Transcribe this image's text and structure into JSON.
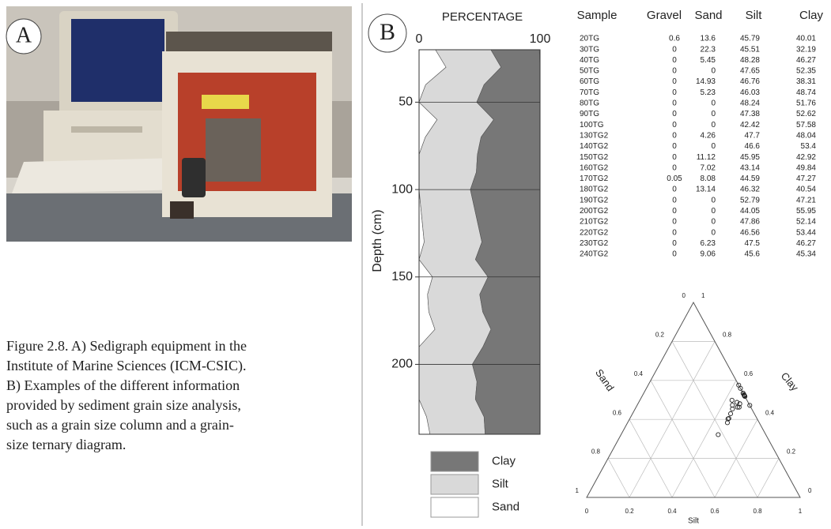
{
  "panels": {
    "a": "A",
    "b": "B"
  },
  "caption": [
    "Figure 2.8.  A) Sedigraph equipment in the",
    "Institute of Marine Sciences (ICM-CSIC).",
    "B) Examples of the different information",
    "provided by sediment grain size analysis,",
    "such as a grain size column and a  grain-",
    "size ternary diagram."
  ],
  "table": {
    "header": [
      "Sample",
      "Gravel",
      "Sand",
      "Silt",
      "Clay"
    ],
    "rows": [
      [
        "20TG",
        0.6,
        13.6,
        45.79,
        40.01
      ],
      [
        "30TG",
        0,
        22.3,
        45.51,
        32.19
      ],
      [
        "40TG",
        0,
        5.45,
        48.28,
        46.27
      ],
      [
        "50TG",
        0,
        0,
        47.65,
        52.35
      ],
      [
        "60TG",
        0,
        14.93,
        46.76,
        38.31
      ],
      [
        "70TG",
        0,
        5.23,
        46.03,
        48.74
      ],
      [
        "80TG",
        0,
        0,
        48.24,
        51.76
      ],
      [
        "90TG",
        0,
        0,
        47.38,
        52.62
      ],
      [
        "100TG",
        0,
        0,
        42.42,
        57.58
      ],
      [
        "130TG2",
        0,
        4.26,
        47.7,
        48.04
      ],
      [
        "140TG2",
        0,
        0,
        46.6,
        53.4
      ],
      [
        "150TG2",
        0,
        11.12,
        45.95,
        42.92
      ],
      [
        "160TG2",
        0,
        7.02,
        43.14,
        49.84
      ],
      [
        "170TG2",
        0.05,
        8.08,
        44.59,
        47.27
      ],
      [
        "180TG2",
        0,
        13.14,
        46.32,
        40.54
      ],
      [
        "190TG2",
        0,
        0,
        52.79,
        47.21
      ],
      [
        "200TG2",
        0,
        0,
        44.05,
        55.95
      ],
      [
        "210TG2",
        0,
        0,
        47.86,
        52.14
      ],
      [
        "220TG2",
        0,
        0,
        46.56,
        53.44
      ],
      [
        "230TG2",
        0,
        6.23,
        47.5,
        46.27
      ],
      [
        "240TG2",
        0,
        9.06,
        45.6,
        45.34
      ]
    ]
  },
  "chart_data": [
    {
      "type": "stacked-column",
      "title": "PERCENTAGE",
      "y_label": "Depth (cm)",
      "y": [
        20,
        30,
        40,
        50,
        60,
        70,
        80,
        90,
        100,
        130,
        140,
        150,
        160,
        170,
        180,
        190,
        200,
        210,
        220,
        230,
        240
      ],
      "ylim": [
        20,
        240
      ],
      "yticks": [
        50,
        100,
        150,
        200
      ],
      "xlim": [
        0,
        100
      ],
      "xticks": [
        0,
        100
      ],
      "grid": true,
      "series": [
        {
          "name": "Sand",
          "color": "#ffffff",
          "values": [
            13.6,
            22.3,
            5.45,
            0,
            14.93,
            5.23,
            0,
            0,
            0,
            4.26,
            0,
            11.12,
            7.02,
            8.08,
            13.14,
            0,
            0,
            0,
            0,
            6.23,
            9.06
          ]
        },
        {
          "name": "Silt",
          "color": "#d9d9d9",
          "values": [
            45.79,
            45.51,
            48.28,
            47.65,
            46.76,
            46.03,
            48.24,
            47.38,
            42.42,
            47.7,
            46.6,
            45.95,
            43.14,
            44.59,
            46.32,
            52.79,
            44.05,
            47.86,
            46.56,
            47.5,
            45.6
          ]
        },
        {
          "name": "Clay",
          "color": "#777777",
          "values": [
            40.01,
            32.19,
            46.27,
            52.35,
            38.31,
            48.74,
            51.76,
            52.62,
            57.58,
            48.04,
            53.4,
            42.92,
            49.84,
            47.27,
            40.54,
            47.21,
            55.95,
            52.14,
            53.44,
            46.27,
            45.34
          ]
        }
      ]
    },
    {
      "type": "ternary",
      "axes": {
        "left": "Sand",
        "bottom": "Silt",
        "right": "Clay"
      },
      "ticks": [
        0,
        0.2,
        0.4,
        0.6,
        0.8,
        1
      ],
      "grid": true,
      "marker_color": "#222222"
    }
  ]
}
